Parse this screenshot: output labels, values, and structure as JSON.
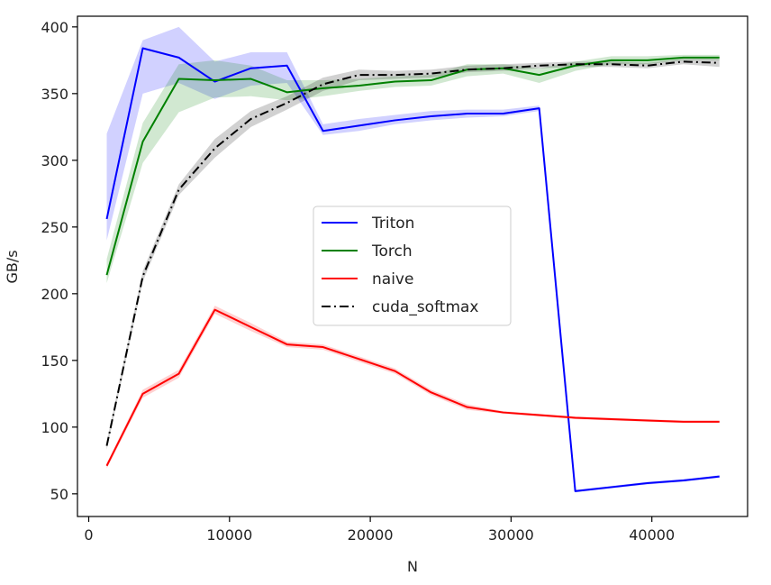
{
  "chart_data": {
    "type": "line",
    "title": "",
    "xlabel": "N",
    "ylabel": "GB/s",
    "xlim": [
      -800,
      46800
    ],
    "ylim": [
      33,
      408
    ],
    "xticks": [
      0,
      10000,
      20000,
      30000,
      40000
    ],
    "xtick_labels": [
      "0",
      "10000",
      "20000",
      "30000",
      "40000"
    ],
    "yticks": [
      50,
      100,
      150,
      200,
      250,
      300,
      350,
      400
    ],
    "ytick_labels": [
      "50",
      "100",
      "150",
      "200",
      "250",
      "300",
      "350",
      "400"
    ],
    "grid": false,
    "legend_position": "center",
    "x": [
      1280,
      3840,
      6400,
      8960,
      11520,
      14080,
      16640,
      19200,
      21760,
      24320,
      26880,
      29440,
      32000,
      34560,
      37120,
      39680,
      42240,
      44800
    ],
    "series": [
      {
        "name": "Triton",
        "color": "#0000ff",
        "style": "solid",
        "values": [
          256,
          384,
          377,
          359,
          369,
          371,
          322,
          326,
          330,
          333,
          335,
          335,
          339,
          52,
          55,
          58,
          60,
          63
        ],
        "band_low": [
          240,
          350,
          358,
          346,
          356,
          358,
          319,
          322,
          327,
          330,
          332,
          333,
          337,
          51,
          54,
          57,
          59,
          62
        ],
        "band_high": [
          320,
          390,
          400,
          374,
          381,
          381,
          327,
          331,
          334,
          337,
          338,
          338,
          341,
          53,
          56,
          59,
          61,
          64
        ]
      },
      {
        "name": "Torch",
        "color": "#008000",
        "style": "solid",
        "values": [
          214,
          314,
          361,
          360,
          361,
          351,
          354,
          356,
          359,
          360,
          368,
          369,
          364,
          371,
          375,
          375,
          377,
          377
        ],
        "band_low": [
          208,
          298,
          336,
          347,
          348,
          345,
          348,
          352,
          355,
          356,
          363,
          365,
          358,
          367,
          372,
          372,
          375,
          375
        ],
        "band_high": [
          226,
          328,
          372,
          375,
          371,
          360,
          360,
          361,
          363,
          364,
          372,
          372,
          369,
          374,
          378,
          378,
          379,
          379
        ]
      },
      {
        "name": "naive",
        "color": "#ff0000",
        "style": "solid",
        "values": [
          71,
          125,
          140,
          188,
          175,
          162,
          160,
          151,
          142,
          126,
          115,
          111,
          109,
          107,
          106,
          105,
          104,
          104
        ],
        "band_low": [
          69,
          122,
          137,
          185,
          172,
          160,
          158,
          149,
          140,
          124,
          113,
          110,
          108,
          106,
          105,
          104,
          103,
          103
        ],
        "band_high": [
          73,
          128,
          143,
          191,
          178,
          164,
          162,
          153,
          144,
          128,
          117,
          112,
          110,
          108,
          107,
          106,
          105,
          105
        ]
      },
      {
        "name": "cuda_softmax",
        "color": "#000000",
        "style": "dashdot",
        "values": [
          86,
          213,
          278,
          309,
          331,
          343,
          357,
          364,
          364,
          365,
          368,
          369,
          371,
          372,
          372,
          371,
          374,
          373
        ],
        "band_low": [
          83,
          209,
          274,
          302,
          325,
          338,
          352,
          360,
          361,
          362,
          366,
          367,
          369,
          370,
          370,
          369,
          372,
          370
        ],
        "band_high": [
          89,
          217,
          282,
          316,
          337,
          348,
          362,
          368,
          367,
          368,
          371,
          372,
          373,
          374,
          374,
          373,
          376,
          376
        ]
      }
    ]
  }
}
